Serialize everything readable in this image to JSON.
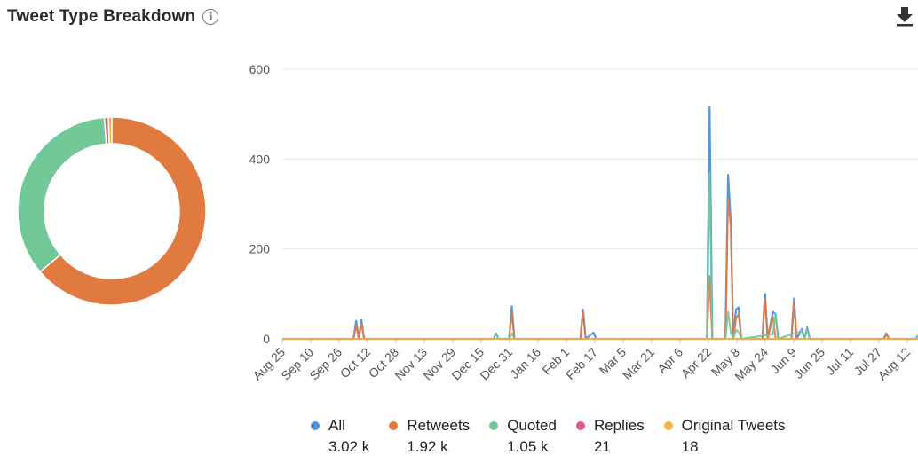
{
  "header": {
    "title": "Tweet Type Breakdown",
    "info_icon": "info-icon",
    "download_icon": "download-icon"
  },
  "colors": {
    "all": "#4a90e2",
    "retweets": "#e07a3f",
    "quoted": "#72c897",
    "replies": "#e4577a",
    "original": "#f0b63e"
  },
  "chart_data": [
    {
      "type": "pie",
      "donut": true,
      "slices": [
        {
          "name": "Retweets",
          "value": 1920,
          "color": "#e07a3f"
        },
        {
          "name": "Quoted",
          "value": 1050,
          "color": "#72c897"
        },
        {
          "name": "Replies",
          "value": 21,
          "color": "#e4577a"
        },
        {
          "name": "Original Tweets",
          "value": 18,
          "color": "#f0b63e"
        }
      ]
    },
    {
      "type": "line",
      "ylim": [
        0,
        600
      ],
      "yticks": [
        0,
        200,
        400,
        600
      ],
      "xticks": [
        "Aug 25",
        "Sep 10",
        "Sep 26",
        "Oct 12",
        "Oct 28",
        "Nov 13",
        "Nov 29",
        "Dec 15",
        "Dec 31",
        "Jan 16",
        "Feb 1",
        "Feb 17",
        "Mar 5",
        "Mar 21",
        "Apr 6",
        "Apr 22",
        "May 8",
        "May 24",
        "Jun 9",
        "Jun 25",
        "Jul 11",
        "Jul 27",
        "Aug 12"
      ],
      "x_start": "Aug 25",
      "grid": true,
      "legend_position": "bottom",
      "series": [
        {
          "name": "All",
          "color": "#4a90e2",
          "points": [
            [
              0,
              0
            ],
            [
              27,
              0
            ],
            [
              28,
              40
            ],
            [
              29,
              0
            ],
            [
              30,
              42
            ],
            [
              31,
              0
            ],
            [
              80,
              0
            ],
            [
              81,
              12
            ],
            [
              82,
              0
            ],
            [
              86,
              0
            ],
            [
              87,
              72
            ],
            [
              88,
              0
            ],
            [
              113,
              0
            ],
            [
              114,
              65
            ],
            [
              115,
              0
            ],
            [
              118,
              14
            ],
            [
              119,
              0
            ],
            [
              161,
              0
            ],
            [
              162,
              515
            ],
            [
              163,
              0
            ],
            [
              168,
              0
            ],
            [
              169,
              365
            ],
            [
              170,
              260
            ],
            [
              171,
              0
            ],
            [
              172,
              65
            ],
            [
              173,
              70
            ],
            [
              174,
              0
            ],
            [
              182,
              0
            ],
            [
              183,
              100
            ],
            [
              184,
              0
            ],
            [
              186,
              60
            ],
            [
              187,
              55
            ],
            [
              188,
              0
            ],
            [
              193,
              0
            ],
            [
              194,
              90
            ],
            [
              195,
              0
            ],
            [
              197,
              22
            ],
            [
              198,
              0
            ],
            [
              199,
              25
            ],
            [
              200,
              0
            ],
            [
              228,
              0
            ],
            [
              229,
              12
            ],
            [
              230,
              0
            ],
            [
              240,
              0
            ],
            [
              241,
              6
            ]
          ]
        },
        {
          "name": "Retweets",
          "color": "#e07a3f",
          "points": [
            [
              0,
              0
            ],
            [
              27,
              0
            ],
            [
              28,
              30
            ],
            [
              29,
              0
            ],
            [
              30,
              35
            ],
            [
              31,
              0
            ],
            [
              86,
              0
            ],
            [
              87,
              60
            ],
            [
              88,
              0
            ],
            [
              113,
              0
            ],
            [
              114,
              60
            ],
            [
              115,
              0
            ],
            [
              161,
              0
            ],
            [
              162,
              140
            ],
            [
              163,
              0
            ],
            [
              168,
              0
            ],
            [
              169,
              310
            ],
            [
              170,
              250
            ],
            [
              171,
              0
            ],
            [
              172,
              45
            ],
            [
              173,
              55
            ],
            [
              174,
              0
            ],
            [
              182,
              0
            ],
            [
              183,
              90
            ],
            [
              184,
              0
            ],
            [
              186,
              50
            ],
            [
              187,
              0
            ],
            [
              193,
              0
            ],
            [
              194,
              80
            ],
            [
              195,
              0
            ],
            [
              228,
              0
            ],
            [
              229,
              10
            ],
            [
              230,
              0
            ]
          ]
        },
        {
          "name": "Quoted",
          "color": "#72c897",
          "points": [
            [
              0,
              0
            ],
            [
              80,
              0
            ],
            [
              81,
              10
            ],
            [
              82,
              0
            ],
            [
              86,
              0
            ],
            [
              87,
              12
            ],
            [
              88,
              0
            ],
            [
              161,
              0
            ],
            [
              162,
              370
            ],
            [
              163,
              0
            ],
            [
              168,
              0
            ],
            [
              169,
              60
            ],
            [
              170,
              15
            ],
            [
              171,
              0
            ],
            [
              172,
              20
            ],
            [
              173,
              15
            ],
            [
              174,
              0
            ],
            [
              186,
              10
            ],
            [
              187,
              55
            ],
            [
              188,
              0
            ],
            [
              197,
              18
            ],
            [
              198,
              0
            ],
            [
              199,
              22
            ],
            [
              200,
              0
            ],
            [
              240,
              0
            ],
            [
              241,
              8
            ]
          ]
        },
        {
          "name": "Replies",
          "color": "#e4577a",
          "points": [
            [
              0,
              0
            ],
            [
              241,
              0
            ]
          ]
        },
        {
          "name": "Original Tweets",
          "color": "#f0b63e",
          "points": [
            [
              0,
              0
            ],
            [
              241,
              0
            ]
          ]
        }
      ]
    }
  ],
  "legend": [
    {
      "name": "All",
      "value": "3.02 k",
      "color": "#4a90e2"
    },
    {
      "name": "Retweets",
      "value": "1.92 k",
      "color": "#e07a3f"
    },
    {
      "name": "Quoted",
      "value": "1.05 k",
      "color": "#72c897"
    },
    {
      "name": "Replies",
      "value": "21",
      "color": "#e4577a"
    },
    {
      "name": "Original Tweets",
      "value": "18",
      "color": "#f0b63e"
    }
  ]
}
